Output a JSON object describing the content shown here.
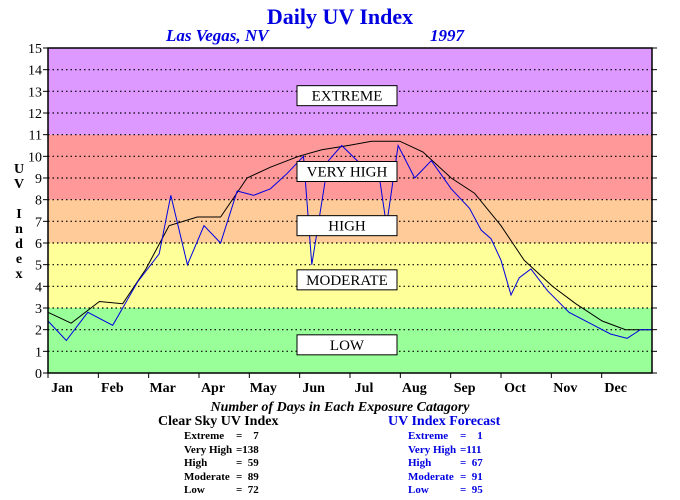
{
  "title": "Daily UV Index",
  "location": "Las Vegas, NV",
  "year": "1997",
  "y_axis_label": [
    "U",
    "V",
    "",
    "I",
    "n",
    "d",
    "e",
    "x"
  ],
  "colors": {
    "low": "#99ff99",
    "moderate": "#ffff99",
    "high": "#ffcc99",
    "very_high": "#ff9999",
    "extreme": "#dd99ff",
    "clear_sky_line": "#000000",
    "forecast_line": "#0000e0",
    "title": "#0000e0"
  },
  "chart_data": {
    "type": "line",
    "title": "Daily UV Index",
    "subtitle": "Las Vegas, NV 1997",
    "xlabel": "",
    "ylabel": "UV Index",
    "ylim": [
      0,
      15
    ],
    "yticks": [
      0,
      1,
      2,
      3,
      4,
      5,
      6,
      7,
      8,
      9,
      10,
      11,
      12,
      13,
      14,
      15
    ],
    "x_categories": [
      "Jan",
      "Feb",
      "Mar",
      "Apr",
      "May",
      "Jun",
      "Jul",
      "Aug",
      "Sep",
      "Oct",
      "Nov",
      "Dec"
    ],
    "grid": "dotted horizontal",
    "bands": [
      {
        "label": "LOW",
        "from": 0,
        "to": 3,
        "label_value": 1.3
      },
      {
        "label": "MODERATE",
        "from": 3,
        "to": 6,
        "label_value": 4.3
      },
      {
        "label": "HIGH",
        "from": 6,
        "to": 8,
        "label_value": 6.8
      },
      {
        "label": "VERY HIGH",
        "from": 8,
        "to": 11,
        "label_value": 9.3
      },
      {
        "label": "EXTREME",
        "from": 11,
        "to": 15,
        "label_value": 12.8
      }
    ],
    "series": [
      {
        "name": "Clear Sky UV Index",
        "color": "#000000",
        "x": [
          1,
          15,
          32,
          46,
          60,
          74,
          91,
          105,
          121,
          135,
          152,
          166,
          182,
          196,
          213,
          227,
          244,
          258,
          274,
          288,
          305,
          319,
          335,
          349,
          365
        ],
        "values": [
          2.8,
          2.3,
          3.3,
          3.2,
          4.8,
          6.8,
          7.2,
          7.2,
          9.0,
          9.5,
          10.0,
          10.3,
          10.5,
          10.7,
          10.7,
          10.2,
          9.0,
          8.3,
          6.8,
          5.2,
          4.0,
          3.2,
          2.4,
          2.0,
          2.0
        ]
      },
      {
        "name": "UV Index Forecast",
        "color": "#0000e0",
        "x": [
          1,
          12,
          25,
          40,
          55,
          68,
          75,
          85,
          95,
          105,
          115,
          125,
          135,
          145,
          155,
          160,
          170,
          178,
          190,
          200,
          205,
          212,
          222,
          232,
          244,
          255,
          262,
          268,
          274,
          280,
          285,
          292,
          302,
          315,
          330,
          340,
          350,
          358,
          365
        ],
        "values": [
          2.4,
          1.5,
          2.8,
          2.2,
          4.2,
          5.5,
          8.2,
          5.0,
          6.8,
          6.0,
          8.4,
          8.2,
          8.5,
          9.2,
          10.0,
          5.0,
          9.8,
          10.5,
          9.6,
          9.4,
          6.8,
          10.5,
          9.0,
          9.8,
          8.5,
          7.6,
          6.6,
          6.2,
          5.2,
          3.6,
          4.4,
          4.8,
          3.8,
          2.8,
          2.2,
          1.8,
          1.6,
          2.0,
          2.0
        ]
      }
    ],
    "annotation_title": "Number of Days in Each Exposure Catagory"
  },
  "stats": {
    "caption": "Number of Days in Each Exposure Catagory",
    "clear_sky": {
      "heading": "Clear Sky UV Index",
      "rows": [
        {
          "name": "Extreme",
          "value": "=    7"
        },
        {
          "name": "Very High",
          "value": "=138"
        },
        {
          "name": "High",
          "value": "=  59"
        },
        {
          "name": "Moderate",
          "value": "=  89"
        },
        {
          "name": "Low",
          "value": "=  72"
        }
      ]
    },
    "forecast": {
      "heading": "UV Index Forecast",
      "rows": [
        {
          "name": "Extreme",
          "value": "=    1"
        },
        {
          "name": "Very High",
          "value": "=111"
        },
        {
          "name": "High",
          "value": "=  67"
        },
        {
          "name": "Moderate",
          "value": "=  91"
        },
        {
          "name": "Low",
          "value": "=  95"
        }
      ]
    }
  }
}
